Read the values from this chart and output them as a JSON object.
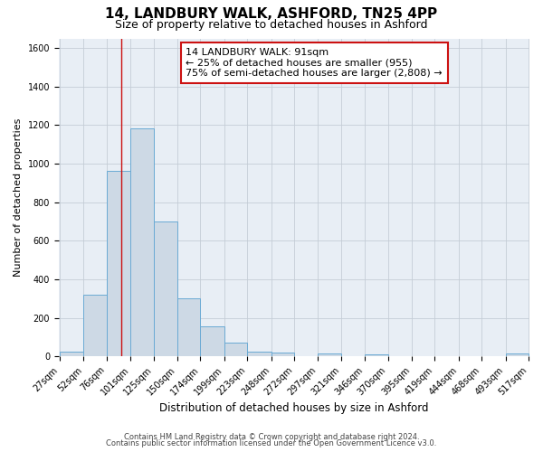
{
  "title": "14, LANDBURY WALK, ASHFORD, TN25 4PP",
  "subtitle": "Size of property relative to detached houses in Ashford",
  "xlabel": "Distribution of detached houses by size in Ashford",
  "ylabel": "Number of detached properties",
  "bar_color": "#cdd9e5",
  "bar_edge_color": "#6aaad4",
  "background_color": "#ffffff",
  "plot_bg_color": "#e8eef5",
  "grid_color": "#c5cdd6",
  "vline_x": 91,
  "vline_color": "#cc1111",
  "annotation_line1": "14 LANDBURY WALK: 91sqm",
  "annotation_line2": "← 25% of detached houses are smaller (955)",
  "annotation_line3": "75% of semi-detached houses are larger (2,808) →",
  "annotation_box_color": "#ffffff",
  "annotation_box_edge_color": "#cc1111",
  "bin_edges": [
    27,
    52,
    76,
    101,
    125,
    150,
    174,
    199,
    223,
    248,
    272,
    297,
    321,
    346,
    370,
    395,
    419,
    444,
    468,
    493,
    517
  ],
  "counts": [
    25,
    320,
    965,
    1185,
    700,
    300,
    155,
    70,
    25,
    20,
    0,
    15,
    0,
    10,
    0,
    0,
    0,
    0,
    0,
    15
  ],
  "ylim": [
    0,
    1650
  ],
  "yticks": [
    0,
    200,
    400,
    600,
    800,
    1000,
    1200,
    1400,
    1600
  ],
  "footnote1": "Contains HM Land Registry data © Crown copyright and database right 2024.",
  "footnote2": "Contains public sector information licensed under the Open Government Licence v3.0.",
  "title_fontsize": 11,
  "subtitle_fontsize": 9,
  "xlabel_fontsize": 8.5,
  "ylabel_fontsize": 8,
  "tick_fontsize": 7,
  "annotation_fontsize": 8,
  "footnote_fontsize": 6
}
